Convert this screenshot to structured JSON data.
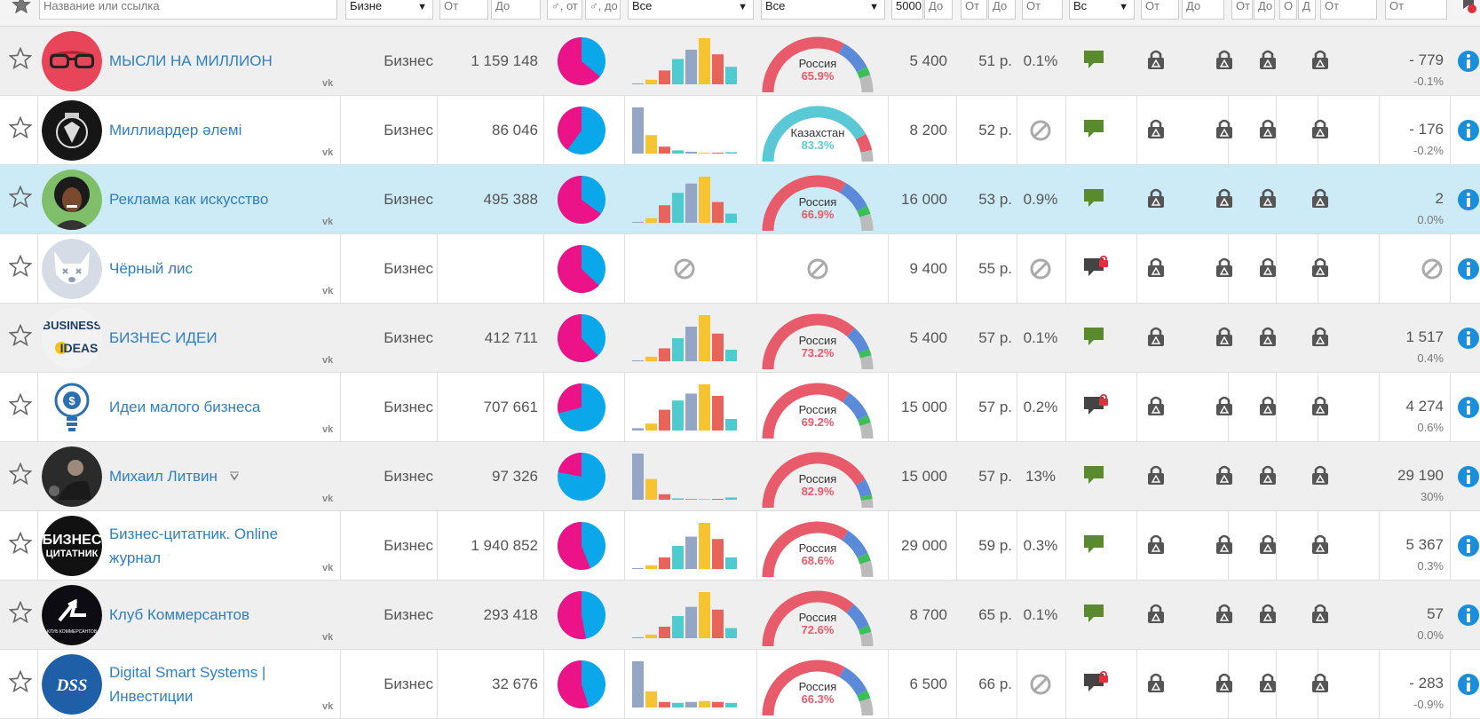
{
  "filters": {
    "name_placeholder": "Название или ссылка",
    "category_value": "Бизне",
    "subs_from": "От",
    "subs_to": "До",
    "male_from": "♂, от",
    "male_to": "♂, до",
    "age_value": "Все",
    "geo_value": "Все",
    "price_from": "5000",
    "price_to": "До",
    "cpm_from": "От",
    "cpm_to": "До",
    "er_from": "От",
    "comments_value": "Вс",
    "f1_from": "От",
    "f1_to": "До",
    "f2_from": "От",
    "f2_to": "До",
    "f3_from": "О",
    "f3_to": "Д",
    "f4_from": "От",
    "growth_from": "От"
  },
  "colors": {
    "male": "#0aa7ea",
    "female": "#ec1389",
    "russia": "#e85b6a",
    "kazakhstan": "#5bc8d6",
    "link": "#2e7fc2",
    "info": "#1a8ed8",
    "chat": "#5a8a2e",
    "chat_locked": "#444444"
  },
  "rows": [
    {
      "name": "МЫСЛИ НА МИЛЛИОН",
      "name2": "",
      "category": "Бизнес",
      "subscribers": "1 159 148",
      "female_share": 0.64,
      "age": [
        2,
        10,
        30,
        55,
        75,
        100,
        65,
        38
      ],
      "age_type": "young",
      "geo_country": "Россия",
      "geo_pct": "65.9%",
      "geo_value": 0.659,
      "geo_kind": "russia",
      "price": "5 400",
      "cpm": "51 р.",
      "er": "0.1%",
      "comments_locked": false,
      "growth_abs": "- 779",
      "growth_pct": "-0.1%",
      "avatar": "glasses",
      "verified": false
    },
    {
      "name": "Миллиардер әлемі",
      "name2": "",
      "category": "Бизнес",
      "subscribers": "86 046",
      "female_share": 0.4,
      "age": [
        100,
        40,
        15,
        7,
        4,
        2,
        2,
        3
      ],
      "age_type": "teen",
      "geo_country": "Казахстан",
      "geo_pct": "83.3%",
      "geo_value": 0.833,
      "geo_kind": "kazakhstan",
      "price": "8 200",
      "cpm": "52 р.",
      "er": "",
      "comments_locked": false,
      "growth_abs": "- 176",
      "growth_pct": "-0.2%",
      "avatar": "lion",
      "verified": false
    },
    {
      "name": "Реклама как искусство",
      "name2": "",
      "category": "Бизнес",
      "subscribers": "495 388",
      "female_share": 0.65,
      "age": [
        2,
        10,
        38,
        65,
        85,
        100,
        45,
        20
      ],
      "age_type": "young",
      "geo_country": "Россия",
      "geo_pct": "66.9%",
      "geo_value": 0.669,
      "geo_kind": "russia",
      "price": "16 000",
      "cpm": "53 р.",
      "er": "0.9%",
      "comments_locked": false,
      "growth_abs": "2",
      "growth_pct": "0.0%",
      "avatar": "woman",
      "verified": false
    },
    {
      "name": "Чёрный лис",
      "name2": "",
      "category": "Бизнес",
      "subscribers": "",
      "female_share": 0.63,
      "age": [],
      "age_type": "none",
      "geo_country": "",
      "geo_pct": "",
      "geo_value": 0,
      "geo_kind": "none",
      "price": "9 400",
      "cpm": "55 р.",
      "er": "",
      "comments_locked": true,
      "growth_abs": "",
      "growth_pct": "",
      "avatar": "dog",
      "verified": false
    },
    {
      "name": "БИЗНЕС ИДЕИ",
      "name2": "",
      "category": "Бизнес",
      "subscribers": "412 711",
      "female_share": 0.62,
      "age": [
        2,
        10,
        28,
        50,
        75,
        100,
        60,
        25
      ],
      "age_type": "young",
      "geo_country": "Россия",
      "geo_pct": "73.2%",
      "geo_value": 0.732,
      "geo_kind": "russia",
      "price": "5 400",
      "cpm": "57 р.",
      "er": "0.1%",
      "comments_locked": false,
      "growth_abs": "1 517",
      "growth_pct": "0.4%",
      "avatar": "ideas",
      "verified": false
    },
    {
      "name": "Идеи малого бизнеса",
      "name2": "",
      "category": "Бизнес",
      "subscribers": "707 661",
      "female_share": 0.29,
      "age": [
        5,
        15,
        45,
        65,
        80,
        100,
        75,
        25
      ],
      "age_type": "young",
      "geo_country": "Россия",
      "geo_pct": "69.2%",
      "geo_value": 0.692,
      "geo_kind": "russia",
      "price": "15 000",
      "cpm": "57 р.",
      "er": "0.2%",
      "comments_locked": true,
      "growth_abs": "4 274",
      "growth_pct": "0.6%",
      "avatar": "bulb",
      "verified": false
    },
    {
      "name": "Михаил Литвин",
      "name2": "",
      "category": "Бизнес",
      "subscribers": "97 326",
      "female_share": 0.22,
      "age": [
        100,
        45,
        12,
        3,
        1,
        0,
        0,
        5
      ],
      "age_type": "teen",
      "geo_country": "Россия",
      "geo_pct": "82.9%",
      "geo_value": 0.829,
      "geo_kind": "russia",
      "price": "15 000",
      "cpm": "57 р.",
      "er": "13%",
      "comments_locked": false,
      "growth_abs": "29 190",
      "growth_pct": "30%",
      "avatar": "man",
      "verified": true
    },
    {
      "name": "Бизнес-цитатник. Online",
      "name2": "журнал",
      "category": "Бизнес",
      "subscribers": "1 940 852",
      "female_share": 0.56,
      "age": [
        2,
        8,
        25,
        50,
        70,
        100,
        65,
        25
      ],
      "age_type": "young",
      "geo_country": "Россия",
      "geo_pct": "68.6%",
      "geo_value": 0.686,
      "geo_kind": "russia",
      "price": "29 000",
      "cpm": "59 р.",
      "er": "0.3%",
      "comments_locked": false,
      "growth_abs": "5 367",
      "growth_pct": "0.3%",
      "avatar": "quotes",
      "verified": false
    },
    {
      "name": "Клуб Коммерсантов",
      "name2": "",
      "category": "Бизнес",
      "subscribers": "293 418",
      "female_share": 0.53,
      "age": [
        2,
        8,
        25,
        48,
        68,
        100,
        62,
        22
      ],
      "age_type": "young",
      "geo_country": "Россия",
      "geo_pct": "72.6%",
      "geo_value": 0.726,
      "geo_kind": "russia",
      "price": "8 700",
      "cpm": "65 р.",
      "er": "0.1%",
      "comments_locked": false,
      "growth_abs": "57",
      "growth_pct": "0.0%",
      "avatar": "club",
      "verified": false
    },
    {
      "name": "Digital Smart Systems |",
      "name2": "Инвестиции",
      "category": "Бизнес",
      "subscribers": "32 676",
      "female_share": 0.55,
      "age": [
        100,
        35,
        12,
        10,
        12,
        14,
        12,
        10
      ],
      "age_type": "teen",
      "geo_country": "Россия",
      "geo_pct": "66.3%",
      "geo_value": 0.663,
      "geo_kind": "russia",
      "price": "6 500",
      "cpm": "66 р.",
      "er": "",
      "comments_locked": true,
      "growth_abs": "- 283",
      "growth_pct": "-0.9%",
      "avatar": "dss",
      "verified": false
    }
  ]
}
